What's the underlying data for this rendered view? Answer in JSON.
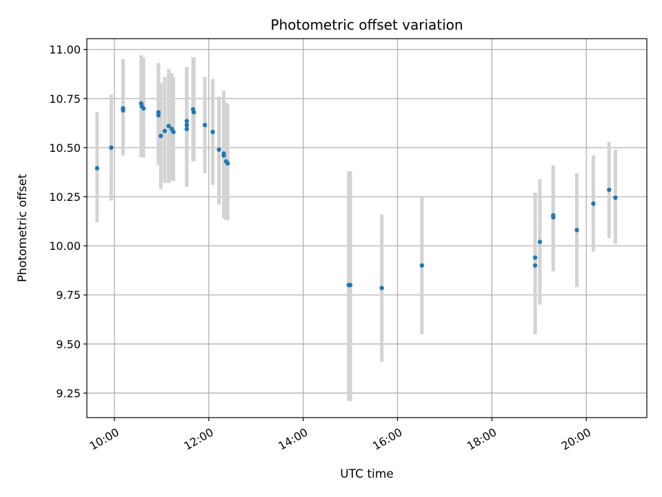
{
  "chart_data": {
    "type": "scatter",
    "title": "Photometric offset variation",
    "xlabel": "UTC time",
    "ylabel": "Photometric offset",
    "x_unit": "hours UTC",
    "xlim": [
      "09:25",
      "21:17"
    ],
    "ylim": [
      9.125,
      11.055
    ],
    "x_ticks": [
      "10:00",
      "12:00",
      "14:00",
      "16:00",
      "18:00",
      "20:00"
    ],
    "y_ticks": [
      "9.25",
      "9.50",
      "9.75",
      "10.00",
      "10.25",
      "10.50",
      "10.75",
      "11.00"
    ],
    "grid": true,
    "colors": {
      "points": "#1f77b4",
      "error_bars": "#d3d3d3",
      "grid": "#b0b0b0"
    },
    "points": [
      {
        "x": "09:38",
        "y": 10.395,
        "err_low": 10.12,
        "err_high": 10.68
      },
      {
        "x": "09:56",
        "y": 10.5,
        "err_low": 10.23,
        "err_high": 10.77
      },
      {
        "x": "10:11",
        "y": 10.7,
        "err_low": 10.46,
        "err_high": 10.95
      },
      {
        "x": "10:11",
        "y": 10.69,
        "err_low": 10.46,
        "err_high": 10.95
      },
      {
        "x": "10:34",
        "y": 10.725,
        "err_low": 10.45,
        "err_high": 10.97
      },
      {
        "x": "10:35",
        "y": 10.71,
        "err_low": 10.45,
        "err_high": 10.96
      },
      {
        "x": "10:37",
        "y": 10.7,
        "err_low": 10.45,
        "err_high": 10.96
      },
      {
        "x": "10:56",
        "y": 10.68,
        "err_low": 10.41,
        "err_high": 10.93
      },
      {
        "x": "10:56",
        "y": 10.665,
        "err_low": 10.41,
        "err_high": 10.93
      },
      {
        "x": "10:59",
        "y": 10.56,
        "err_low": 10.29,
        "err_high": 10.83
      },
      {
        "x": "11:04",
        "y": 10.585,
        "err_low": 10.32,
        "err_high": 10.86
      },
      {
        "x": "11:09",
        "y": 10.61,
        "err_low": 10.32,
        "err_high": 10.9
      },
      {
        "x": "11:13",
        "y": 10.595,
        "err_low": 10.33,
        "err_high": 10.88
      },
      {
        "x": "11:15",
        "y": 10.58,
        "err_low": 10.33,
        "err_high": 10.86
      },
      {
        "x": "11:32",
        "y": 10.635,
        "err_low": 10.3,
        "err_high": 10.91
      },
      {
        "x": "11:32",
        "y": 10.615,
        "err_low": 10.3,
        "err_high": 10.91
      },
      {
        "x": "11:32",
        "y": 10.595,
        "err_low": 10.3,
        "err_high": 10.91
      },
      {
        "x": "11:40",
        "y": 10.695,
        "err_low": 10.43,
        "err_high": 10.96
      },
      {
        "x": "11:41",
        "y": 10.68,
        "err_low": 10.43,
        "err_high": 10.96
      },
      {
        "x": "11:55",
        "y": 10.615,
        "err_low": 10.37,
        "err_high": 10.86
      },
      {
        "x": "12:05",
        "y": 10.58,
        "err_low": 10.31,
        "err_high": 10.85
      },
      {
        "x": "12:13",
        "y": 10.49,
        "err_low": 10.21,
        "err_high": 10.76
      },
      {
        "x": "12:19",
        "y": 10.46,
        "err_low": 10.14,
        "err_high": 10.78
      },
      {
        "x": "12:19",
        "y": 10.47,
        "err_low": 10.14,
        "err_high": 10.79
      },
      {
        "x": "12:22",
        "y": 10.43,
        "err_low": 10.13,
        "err_high": 10.73
      },
      {
        "x": "12:24",
        "y": 10.42,
        "err_low": 10.13,
        "err_high": 10.72
      },
      {
        "x": "14:58",
        "y": 9.8,
        "err_low": 9.21,
        "err_high": 10.38
      },
      {
        "x": "15:00",
        "y": 9.8,
        "err_low": 9.21,
        "err_high": 10.38
      },
      {
        "x": "15:40",
        "y": 9.785,
        "err_low": 9.41,
        "err_high": 10.16
      },
      {
        "x": "16:31",
        "y": 9.9,
        "err_low": 9.55,
        "err_high": 10.25
      },
      {
        "x": "18:55",
        "y": 9.94,
        "err_low": 9.55,
        "err_high": 10.27
      },
      {
        "x": "18:55",
        "y": 9.9,
        "err_low": 9.55,
        "err_high": 10.27
      },
      {
        "x": "19:01",
        "y": 10.02,
        "err_low": 9.7,
        "err_high": 10.34
      },
      {
        "x": "19:18",
        "y": 10.145,
        "err_low": 9.87,
        "err_high": 10.41
      },
      {
        "x": "19:18",
        "y": 10.155,
        "err_low": 9.9,
        "err_high": 10.41
      },
      {
        "x": "19:48",
        "y": 10.08,
        "err_low": 9.79,
        "err_high": 10.37
      },
      {
        "x": "20:09",
        "y": 10.215,
        "err_low": 9.97,
        "err_high": 10.46
      },
      {
        "x": "20:29",
        "y": 10.285,
        "err_low": 10.04,
        "err_high": 10.53
      },
      {
        "x": "20:37",
        "y": 10.245,
        "err_low": 10.01,
        "err_high": 10.49
      }
    ]
  }
}
